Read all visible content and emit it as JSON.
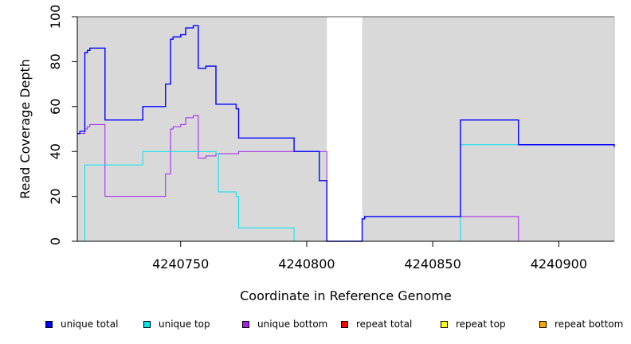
{
  "chart_data": {
    "type": "line",
    "xlabel": "Coordinate in Reference Genome",
    "ylabel": "Read Coverage Depth",
    "xlim": [
      4240709,
      4240922
    ],
    "ylim": [
      0,
      100
    ],
    "x_ticks": [
      4240750,
      4240800,
      4240850,
      4240900
    ],
    "x_tick_labels": [
      "4240750",
      "4240800",
      "4240850",
      "4240900"
    ],
    "y_ticks": [
      0,
      20,
      40,
      60,
      80,
      100
    ],
    "y_tick_labels": [
      "0",
      "20",
      "40",
      "60",
      "80",
      "100"
    ],
    "background_color": "#d9d9d9",
    "gap_region": [
      4240808,
      4240822
    ],
    "grid": false,
    "legend_position": "bottom",
    "series": [
      {
        "name": "unique total",
        "color": "#0000ff",
        "x": [
          4240709,
          4240710,
          4240712,
          4240713,
          4240714,
          4240720,
          4240735,
          4240744,
          4240746,
          4240747,
          4240750,
          4240752,
          4240755,
          4240757,
          4240760,
          4240764,
          4240772,
          4240773,
          4240795,
          4240805,
          4240808,
          4240822,
          4240823,
          4240861,
          4240884,
          4240921,
          4240922
        ],
        "y": [
          48,
          49,
          84,
          85,
          86,
          54,
          60,
          70,
          90,
          91,
          92,
          95,
          96,
          77,
          78,
          61,
          59,
          46,
          40,
          27,
          0,
          10,
          11,
          54,
          43,
          43,
          42
        ]
      },
      {
        "name": "unique top",
        "color": "#00e5ee",
        "x": [
          4240709,
          4240712,
          4240735,
          4240764,
          4240765,
          4240772,
          4240773,
          4240795,
          4240861,
          4240922
        ],
        "y": [
          0,
          34,
          40,
          39,
          22,
          20,
          6,
          0,
          43,
          43
        ]
      },
      {
        "name": "unique bottom",
        "color": "#a020f0",
        "x": [
          4240709,
          4240712,
          4240713,
          4240714,
          4240720,
          4240744,
          4240746,
          4240747,
          4240750,
          4240752,
          4240755,
          4240757,
          4240760,
          4240762,
          4240764,
          4240772,
          4240773,
          4240808,
          4240822,
          4240861,
          4240884,
          4240922
        ],
        "y": [
          48,
          50,
          51,
          52,
          20,
          30,
          50,
          51,
          52,
          55,
          56,
          37,
          38,
          38,
          39,
          39,
          40,
          0,
          0,
          11,
          0,
          0
        ]
      },
      {
        "name": "repeat total",
        "color": "#ff0000",
        "x": [
          4240709,
          4240922
        ],
        "y": [
          0,
          0
        ]
      },
      {
        "name": "repeat top",
        "color": "#ffff00",
        "x": [
          4240709,
          4240922
        ],
        "y": [
          0,
          0
        ]
      },
      {
        "name": "repeat bottom",
        "color": "#ffa500",
        "x": [
          4240709,
          4240922
        ],
        "y": [
          0,
          0
        ]
      }
    ]
  }
}
